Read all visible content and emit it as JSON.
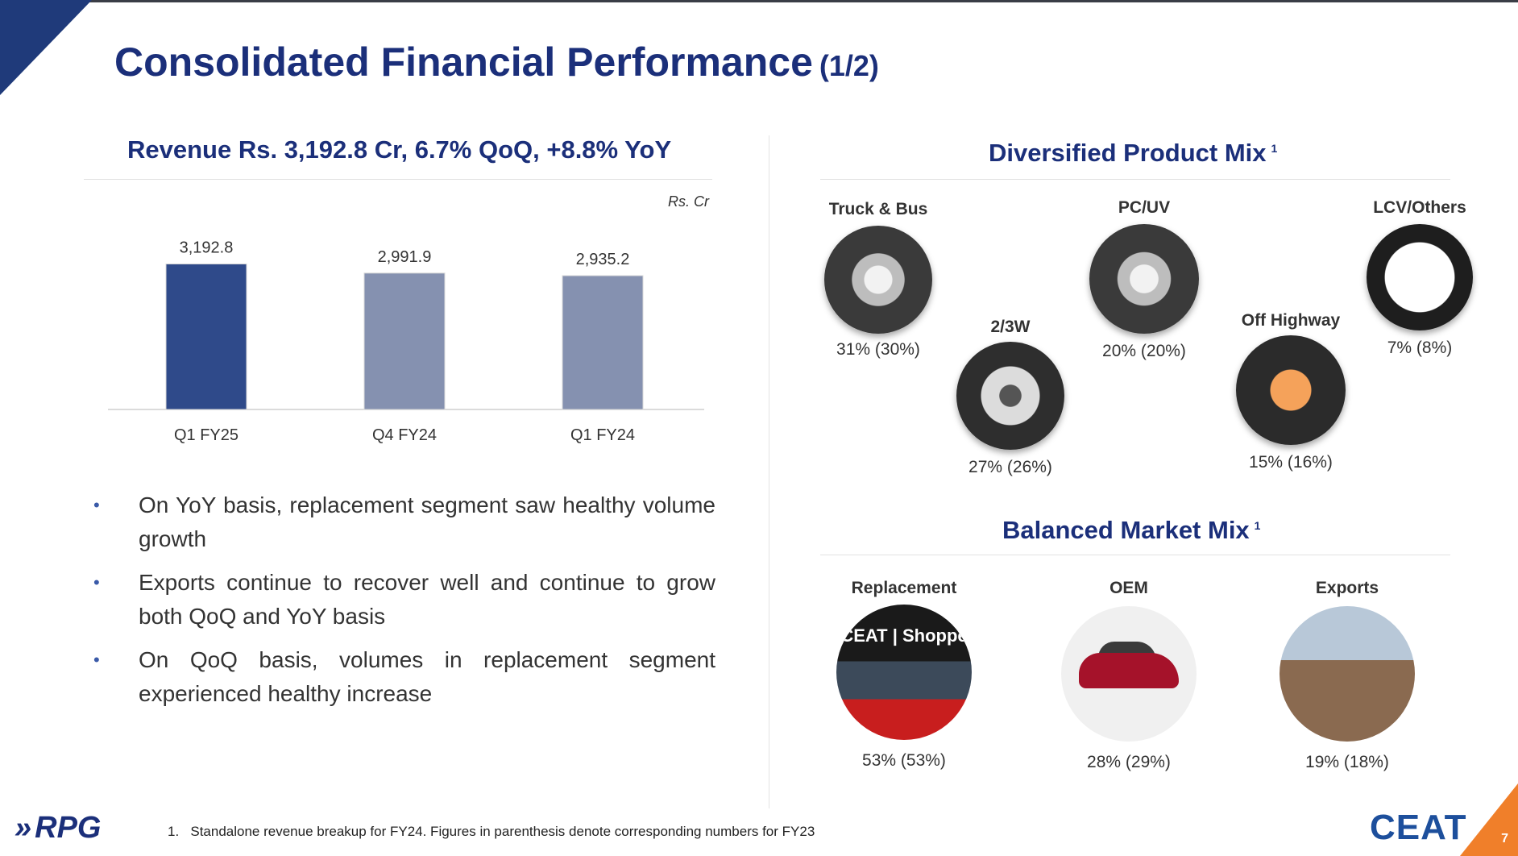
{
  "title": "Consolidated Financial Performance",
  "title_suffix": "(1/2)",
  "revenue": {
    "heading": "Revenue Rs. 3,192.8 Cr, 6.7% QoQ, +8.8% YoY",
    "unit": "Rs. Cr"
  },
  "chart_data": {
    "type": "bar",
    "categories": [
      "Q1 FY25",
      "Q4 FY24",
      "Q1 FY24"
    ],
    "values": [
      3192.8,
      2991.9,
      2935.2
    ],
    "value_labels": [
      "3,192.8",
      "2,991.9",
      "2,935.2"
    ],
    "colors": [
      "#2f4a8a",
      "#8591b0",
      "#8591b0"
    ],
    "ylim": [
      0,
      3500
    ]
  },
  "bullets": [
    "On YoY basis, replacement segment saw healthy volume growth",
    "Exports continue to recover well and continue to grow both QoQ and YoY basis",
    "On QoQ basis, volumes in replacement segment experienced healthy increase"
  ],
  "product_mix": {
    "heading": "Diversified Product Mix",
    "footnote_ref": "1",
    "items": [
      {
        "label": "Truck & Bus",
        "value": "31% (30%)",
        "icon": "truck-bus-tyre-icon"
      },
      {
        "label": "2/3W",
        "value": "27% (26%)",
        "icon": "two-wheeler-tyre-icon"
      },
      {
        "label": "PC/UV",
        "value": "20% (20%)",
        "icon": "pc-uv-tyre-icon"
      },
      {
        "label": "Off Highway",
        "value": "15% (16%)",
        "icon": "off-highway-tyre-icon"
      },
      {
        "label": "LCV/Others",
        "value": "7% (8%)",
        "icon": "lcv-tyre-icon"
      }
    ]
  },
  "market_mix": {
    "heading": "Balanced Market Mix",
    "footnote_ref": "1",
    "items": [
      {
        "label": "Replacement",
        "value": "53% (53%)",
        "photo_text": "CEAT | Shoppe"
      },
      {
        "label": "OEM",
        "value": "28% (29%)"
      },
      {
        "label": "Exports",
        "value": "19% (18%)"
      }
    ]
  },
  "footer": {
    "footnote_number": "1.",
    "footnote": "Standalone revenue breakup for FY24. Figures in parenthesis denote corresponding numbers for FY23",
    "left_logo": "RPG",
    "right_logo": "CEAT",
    "page_number": "7"
  }
}
